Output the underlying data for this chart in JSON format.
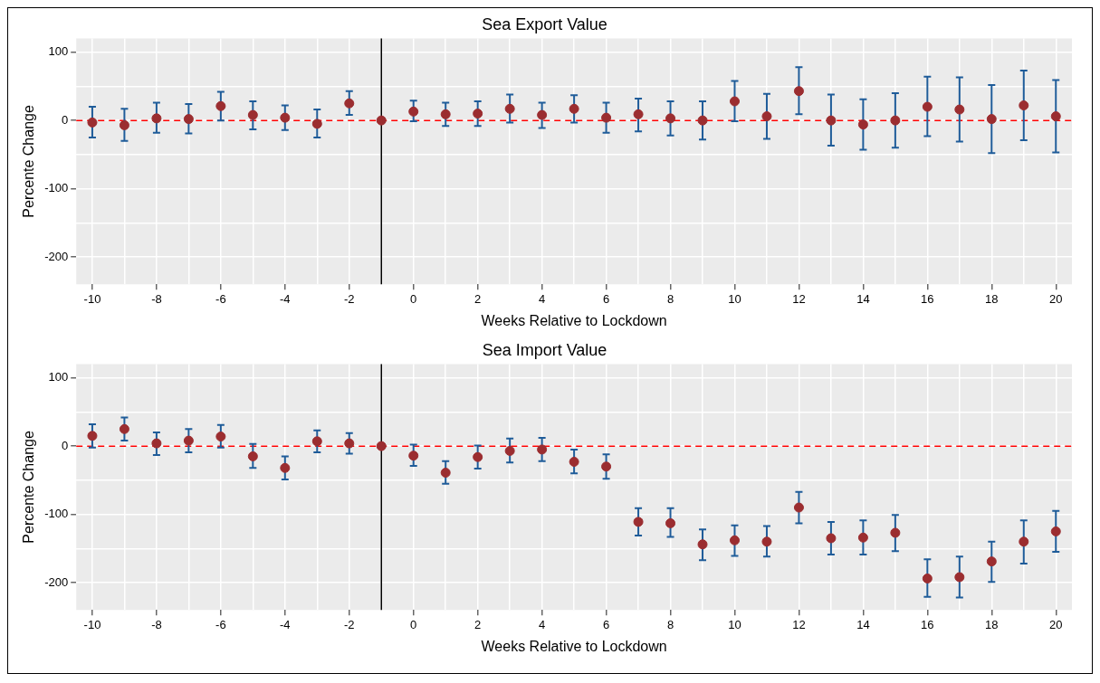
{
  "chart_data": [
    {
      "type": "scatter",
      "title": "Sea Export Value",
      "xlabel": "Weeks Relative to Lockdown",
      "ylabel": "Percente Change",
      "x": [
        -10,
        -9,
        -8,
        -7,
        -6,
        -5,
        -4,
        -3,
        -2,
        -1,
        0,
        1,
        2,
        3,
        4,
        5,
        6,
        7,
        8,
        9,
        10,
        11,
        12,
        13,
        14,
        15,
        16,
        17,
        18,
        19,
        20
      ],
      "series": [
        {
          "color": "#9b2d30",
          "values": [
            -3,
            -7,
            3,
            2,
            21,
            8,
            4,
            -5,
            25,
            0,
            13,
            9,
            10,
            17,
            8,
            17,
            4,
            9,
            3,
            0,
            28,
            6,
            43,
            0,
            -6,
            0,
            20,
            16,
            2,
            22,
            6
          ],
          "errors": [
            [
              -25,
              20
            ],
            [
              -30,
              17
            ],
            [
              -18,
              26
            ],
            [
              -19,
              24
            ],
            [
              0,
              42
            ],
            [
              -13,
              28
            ],
            [
              -14,
              22
            ],
            [
              -25,
              16
            ],
            [
              8,
              43
            ],
            null,
            [
              -1,
              29
            ],
            [
              -8,
              26
            ],
            [
              -8,
              28
            ],
            [
              -3,
              38
            ],
            [
              -11,
              26
            ],
            [
              -3,
              37
            ],
            [
              -18,
              26
            ],
            [
              -16,
              32
            ],
            [
              -22,
              28
            ],
            [
              -28,
              28
            ],
            [
              -1,
              58
            ],
            [
              -27,
              39
            ],
            [
              9,
              78
            ],
            [
              -37,
              38
            ],
            [
              -43,
              31
            ],
            [
              -40,
              40
            ],
            [
              -23,
              64
            ],
            [
              -31,
              63
            ],
            [
              -48,
              52
            ],
            [
              -29,
              73
            ],
            [
              -47,
              59
            ]
          ]
        }
      ],
      "xlim": [
        -10.5,
        20.5
      ],
      "xticks": [
        -10,
        {
          "value": -9,
          "label": null
        },
        -8,
        {
          "value": -7,
          "label": null
        },
        -6,
        {
          "value": -5,
          "label": null
        },
        -4,
        {
          "value": -3,
          "label": null
        },
        -2,
        {
          "value": -1,
          "label": null
        },
        0,
        {
          "value": 1,
          "label": null
        },
        2,
        {
          "value": 3,
          "label": null
        },
        4,
        {
          "value": 5,
          "label": null
        },
        6,
        {
          "value": 7,
          "label": null
        },
        8,
        {
          "value": 9,
          "label": null
        },
        10,
        {
          "value": 11,
          "label": null
        },
        12,
        {
          "value": 13,
          "label": null
        },
        14,
        {
          "value": 15,
          "label": null
        },
        16,
        {
          "value": 17,
          "label": null
        },
        18,
        {
          "value": 19,
          "label": null
        },
        20
      ],
      "ylim": [
        -240,
        120
      ],
      "yticks": [
        -200,
        {
          "value": -150,
          "label": null
        },
        -100,
        {
          "value": -50,
          "label": null
        },
        0,
        {
          "value": 50,
          "label": null
        },
        100
      ],
      "ref_lines": [
        {
          "axis": "y",
          "value": 0,
          "color": "#ff0000",
          "line_style": "dashed"
        },
        {
          "axis": "x",
          "value": -1,
          "color": "#000000",
          "line_style": "solid"
        }
      ],
      "grid": true,
      "marker": "circle",
      "legend": false
    },
    {
      "type": "scatter",
      "title": "Sea Import Value",
      "xlabel": "Weeks Relative to Lockdown",
      "ylabel": "Percente Change",
      "x": [
        -10,
        -9,
        -8,
        -7,
        -6,
        -5,
        -4,
        -3,
        -2,
        -1,
        0,
        1,
        2,
        3,
        4,
        5,
        6,
        7,
        8,
        9,
        10,
        11,
        12,
        13,
        14,
        15,
        16,
        17,
        18,
        19,
        20
      ],
      "series": [
        {
          "color": "#9b2d30",
          "values": [
            15,
            25,
            4,
            8,
            14,
            -15,
            -32,
            7,
            4,
            0,
            -14,
            -39,
            -16,
            -7,
            -5,
            -23,
            -30,
            -111,
            -113,
            -144,
            -138,
            -140,
            -90,
            -135,
            -134,
            -127,
            -194,
            -192,
            -169,
            -140,
            -125
          ],
          "errors": [
            [
              -2,
              32
            ],
            [
              8,
              42
            ],
            [
              -13,
              20
            ],
            [
              -9,
              25
            ],
            [
              -2,
              31
            ],
            [
              -32,
              3
            ],
            [
              -49,
              -15
            ],
            [
              -9,
              23
            ],
            [
              -11,
              19
            ],
            null,
            [
              -29,
              2
            ],
            [
              -55,
              -22
            ],
            [
              -33,
              1
            ],
            [
              -24,
              11
            ],
            [
              -22,
              12
            ],
            [
              -40,
              -5
            ],
            [
              -48,
              -12
            ],
            [
              -131,
              -91
            ],
            [
              -133,
              -91
            ],
            [
              -167,
              -122
            ],
            [
              -161,
              -116
            ],
            [
              -162,
              -117
            ],
            [
              -113,
              -67
            ],
            [
              -159,
              -111
            ],
            [
              -159,
              -109
            ],
            [
              -154,
              -101
            ],
            [
              -221,
              -166
            ],
            [
              -222,
              -162
            ],
            [
              -199,
              -140
            ],
            [
              -172,
              -109
            ],
            [
              -155,
              -95
            ]
          ]
        }
      ],
      "xlim": [
        -10.5,
        20.5
      ],
      "xticks": [
        -10,
        {
          "value": -9,
          "label": null
        },
        -8,
        {
          "value": -7,
          "label": null
        },
        -6,
        {
          "value": -5,
          "label": null
        },
        -4,
        {
          "value": -3,
          "label": null
        },
        -2,
        {
          "value": -1,
          "label": null
        },
        0,
        {
          "value": 1,
          "label": null
        },
        2,
        {
          "value": 3,
          "label": null
        },
        4,
        {
          "value": 5,
          "label": null
        },
        6,
        {
          "value": 7,
          "label": null
        },
        8,
        {
          "value": 9,
          "label": null
        },
        10,
        {
          "value": 11,
          "label": null
        },
        12,
        {
          "value": 13,
          "label": null
        },
        14,
        {
          "value": 15,
          "label": null
        },
        16,
        {
          "value": 17,
          "label": null
        },
        18,
        {
          "value": 19,
          "label": null
        },
        20
      ],
      "ylim": [
        -240,
        120
      ],
      "yticks": [
        -200,
        {
          "value": -150,
          "label": null
        },
        -100,
        {
          "value": -50,
          "label": null
        },
        0,
        {
          "value": 50,
          "label": null
        },
        100
      ],
      "ref_lines": [
        {
          "axis": "y",
          "value": 0,
          "color": "#ff0000",
          "line_style": "dashed"
        },
        {
          "axis": "x",
          "value": -1,
          "color": "#000000",
          "line_style": "solid"
        }
      ],
      "grid": true,
      "marker": "circle",
      "legend": false
    }
  ]
}
